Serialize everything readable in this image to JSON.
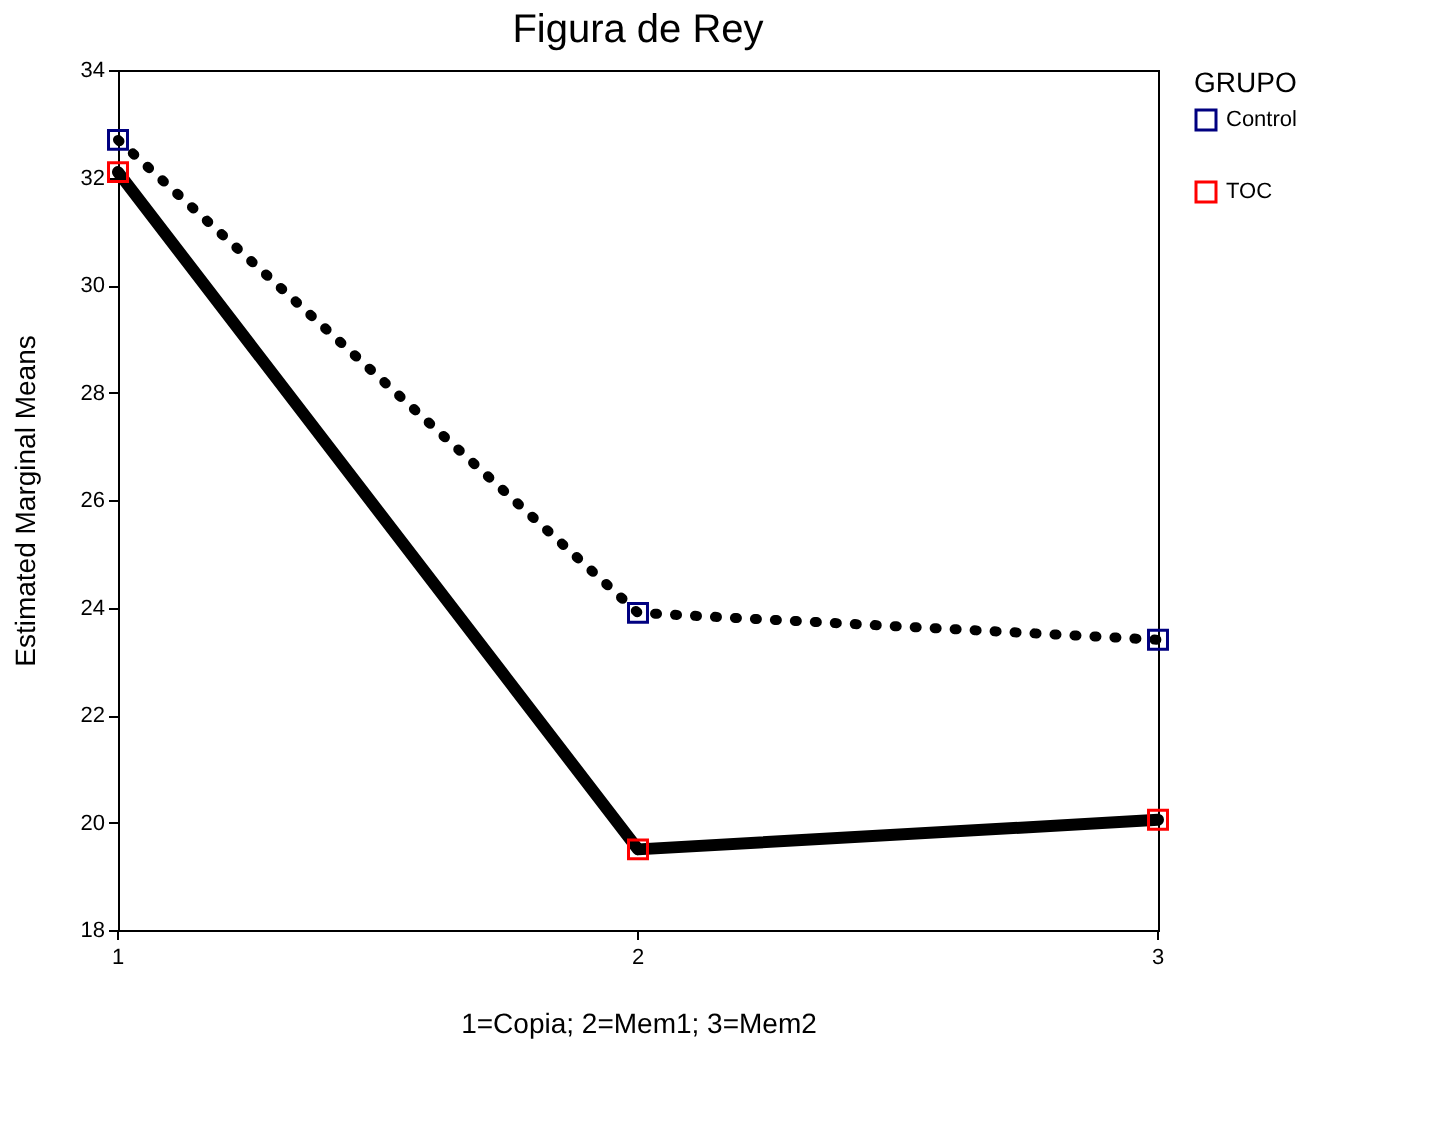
{
  "chart_data": {
    "type": "line",
    "title": "Figura de Rey",
    "xlabel": "1=Copia; 2=Mem1; 3=Mem2",
    "ylabel": "Estimated Marginal Means",
    "legend_title": "GRUPO",
    "x": [
      1,
      2,
      3
    ],
    "series": [
      {
        "name": "Control",
        "color": "#000000",
        "colors": [
          "#000080",
          "#000080",
          "#000080"
        ],
        "values": [
          32.7,
          23.9,
          23.4
        ],
        "line_style": "dotted"
      },
      {
        "name": "TOC",
        "color": "#000000",
        "colors": [
          "#ff0000",
          "#ff0000",
          "#ff0000"
        ],
        "values": [
          32.1,
          19.5,
          20.05
        ],
        "line_style": "solid"
      }
    ],
    "xlim": [
      1,
      3
    ],
    "xticks": [
      1,
      2,
      3
    ],
    "ylim": [
      18,
      34
    ],
    "yticks": [
      18,
      20,
      22,
      24,
      26,
      28,
      30,
      32,
      34
    ],
    "grid": false,
    "legend": "right",
    "marker": "square"
  }
}
